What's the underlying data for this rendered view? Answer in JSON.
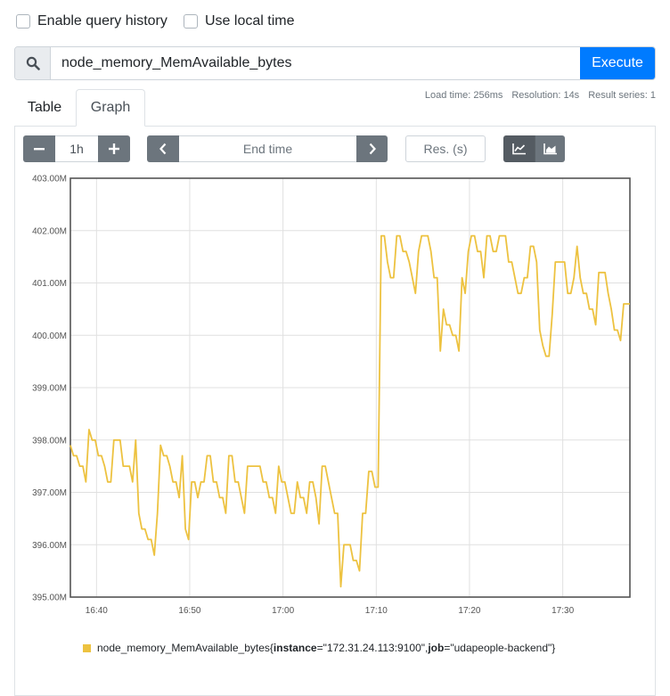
{
  "options": {
    "query_history_label": "Enable query history",
    "local_time_label": "Use local time"
  },
  "query": {
    "value": "node_memory_MemAvailable_bytes",
    "execute_label": "Execute"
  },
  "stats": {
    "load_time": "Load time: 256ms",
    "resolution": "Resolution: 14s",
    "result_series": "Result series: 1"
  },
  "tabs": {
    "table": "Table",
    "graph": "Graph"
  },
  "controls": {
    "range_value": "1h",
    "end_time_placeholder": "End time",
    "res_placeholder": "Res. (s)"
  },
  "colors": {
    "series": "#EDC240",
    "accent": "#007bff",
    "button_dark": "#6c757d",
    "button_active": "#545b62"
  },
  "legend": {
    "metric": "node_memory_MemAvailable_bytes",
    "open": "{",
    "label1_key": "instance",
    "label1_value": "=\"172.31.24.113:9100\"",
    "sep": ", ",
    "label2_key": "job",
    "label2_value": "=\"udapeople-backend\"",
    "close": "}"
  },
  "chart_data": {
    "type": "line",
    "ylim": [
      395.0,
      403.0
    ],
    "xlim": [
      16.62,
      17.62
    ],
    "y_ticks": [
      "395.00M",
      "396.00M",
      "397.00M",
      "398.00M",
      "399.00M",
      "400.00M",
      "401.00M",
      "402.00M",
      "403.00M"
    ],
    "x_ticks": [
      {
        "label": "16:40",
        "t": 16.6667
      },
      {
        "label": "16:50",
        "t": 16.8333
      },
      {
        "label": "17:00",
        "t": 17.0
      },
      {
        "label": "17:10",
        "t": 17.1667
      },
      {
        "label": "17:20",
        "t": 17.3333
      },
      {
        "label": "17:30",
        "t": 17.5
      }
    ],
    "grid": true,
    "series": [
      {
        "name": "node_memory_MemAvailable_bytes{instance=\"172.31.24.113:9100\", job=\"udapeople-backend\"}",
        "values": [
          397.9,
          397.7,
          397.7,
          397.5,
          397.5,
          397.2,
          398.2,
          398.0,
          398.0,
          397.7,
          397.7,
          397.5,
          397.2,
          397.2,
          398.0,
          398.0,
          398.0,
          397.5,
          397.5,
          397.5,
          397.2,
          398.0,
          396.6,
          396.3,
          396.3,
          396.1,
          396.1,
          395.8,
          396.6,
          397.9,
          397.7,
          397.7,
          397.5,
          397.2,
          397.2,
          396.9,
          397.7,
          396.3,
          396.1,
          397.2,
          397.2,
          396.9,
          397.2,
          397.2,
          397.7,
          397.7,
          397.2,
          397.2,
          396.9,
          396.9,
          396.6,
          397.7,
          397.7,
          397.2,
          397.2,
          396.9,
          396.6,
          397.5,
          397.5,
          397.5,
          397.5,
          397.5,
          397.2,
          397.2,
          396.9,
          396.9,
          396.6,
          397.5,
          397.2,
          397.2,
          396.9,
          396.6,
          396.6,
          397.2,
          396.9,
          396.9,
          396.6,
          397.2,
          397.2,
          396.9,
          396.4,
          397.5,
          397.5,
          397.2,
          396.9,
          396.6,
          396.6,
          395.2,
          396.0,
          396.0,
          396.0,
          395.7,
          395.7,
          395.5,
          396.6,
          396.6,
          397.4,
          397.4,
          397.1,
          397.1,
          401.9,
          401.9,
          401.4,
          401.1,
          401.1,
          401.9,
          401.9,
          401.6,
          401.6,
          401.4,
          401.1,
          400.8,
          401.6,
          401.9,
          401.9,
          401.9,
          401.6,
          401.1,
          401.1,
          399.7,
          400.5,
          400.2,
          400.2,
          400.0,
          400.0,
          399.7,
          401.1,
          400.8,
          401.6,
          401.9,
          401.9,
          401.6,
          401.6,
          401.1,
          401.9,
          401.9,
          401.6,
          401.6,
          401.9,
          401.9,
          401.9,
          401.4,
          401.4,
          401.1,
          400.8,
          400.8,
          401.1,
          401.1,
          401.7,
          401.7,
          401.4,
          400.1,
          399.8,
          399.6,
          399.6,
          400.4,
          401.4,
          401.4,
          401.4,
          401.4,
          400.8,
          400.8,
          401.1,
          401.7,
          401.1,
          400.8,
          400.8,
          400.5,
          400.5,
          400.2,
          401.2,
          401.2,
          401.2,
          400.8,
          400.5,
          400.1,
          400.1,
          399.9,
          400.6,
          400.6,
          400.6
        ]
      }
    ]
  }
}
